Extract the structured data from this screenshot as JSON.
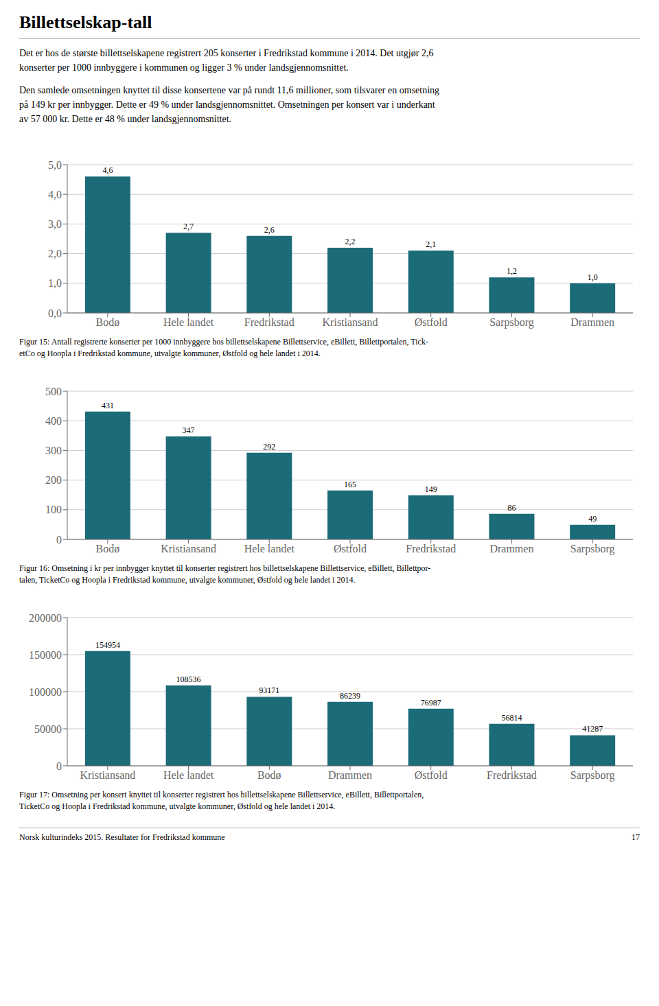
{
  "title": "Billettselskap-tall",
  "annotations": [
    [
      "Det er hos de største billettselskapene registrert 205 konserter i Fredrikstad kommune i 2014. Det utgjør 2,6",
      "konserter per 1000 innbyggere i kommunen og ligger 3 % under landsgjennomsnittet."
    ],
    [
      "Den samlede omsetningen knyttet til disse konsertene var på rundt 11,6 millioner, som tilsvarer en omsetning",
      "på 149 kr per innbygger. Dette er 49 % under landsgjennomsnittet. Omsetningen per konsert var i underkant",
      "av 57 000 kr. Dette er 48 % under landsgjennomsnittet."
    ],
    [
      "Norsk kulturindeks 2015. Resultater for Fredrikstad kommune",
      "17"
    ]
  ],
  "chart_data": [
    {
      "type": "bar",
      "categories": [
        "Bodø",
        "Hele landet",
        "Fredrikstad",
        "Kristiansand",
        "Østfold",
        "Sarpsborg",
        "Drammen"
      ],
      "values": [
        4.6,
        2.7,
        2.6,
        2.2,
        2.1,
        1.2,
        1.0
      ],
      "value_labels": [
        "4,6",
        "2,7",
        "2,6",
        "2,2",
        "2,1",
        "1,2",
        "1,0"
      ],
      "color": "#1c6b78",
      "ylim": [
        0,
        5.0
      ],
      "yticks": [
        {
          "value": 0.0,
          "label": "0,0"
        },
        {
          "value": 1.0,
          "label": "1,0"
        },
        {
          "value": 2.0,
          "label": "2,0"
        },
        {
          "value": 3.0,
          "label": "3,0"
        },
        {
          "value": 4.0,
          "label": "4,0"
        },
        {
          "value": 5.0,
          "label": "5,0"
        }
      ],
      "grid": true,
      "data_labels": true,
      "annotations": [
        "Figur 15: Antall registrerte konserter per 1000 innbyggere hos billettselskapene Billettservice, eBillett, Billettportalen, Tick-",
        "etCo og Hoopla i Fredrikstad kommune, utvalgte kommuner, Østfold og hele landet  i 2014."
      ]
    },
    {
      "type": "bar",
      "categories": [
        "Bodø",
        "Kristiansand",
        "Hele landet",
        "Østfold",
        "Fredrikstad",
        "Drammen",
        "Sarpsborg"
      ],
      "values": [
        431,
        347,
        292,
        165,
        149,
        86,
        49
      ],
      "color": "#1c6b78",
      "ylim": [
        0,
        500
      ],
      "yticks": [
        0,
        100,
        200,
        300,
        400,
        500
      ],
      "grid": true,
      "data_labels": true,
      "annotations": [
        "Figur 16: Omsetning i kr per innbygger knyttet til konserter registrert hos billettselskapene Billettservice, eBillett, Billettpor-",
        "talen, TicketCo og Hoopla i Fredrikstad kommune, utvalgte kommuner, Østfold og hele landet i 2014."
      ]
    },
    {
      "type": "bar",
      "categories": [
        "Kristiansand",
        "Hele landet",
        "Bodø",
        "Drammen",
        "Østfold",
        "Fredrikstad",
        "Sarpsborg"
      ],
      "values": [
        154954,
        108536,
        93171,
        86239,
        76987,
        56814,
        41287
      ],
      "color": "#1c6b78",
      "ylim": [
        0,
        200000
      ],
      "yticks": [
        0,
        50000,
        100000,
        150000,
        200000
      ],
      "grid": true,
      "data_labels": true,
      "annotations": [
        "Figur 17: Omsetning per konsert knyttet til konserter registrert hos billettselskapene Billettservice, eBillett, Billettportalen,",
        "TicketCo og Hoopla i Fredrikstad kommune, utvalgte kommuner, Østfold og hele landet  i 2014."
      ]
    }
  ]
}
